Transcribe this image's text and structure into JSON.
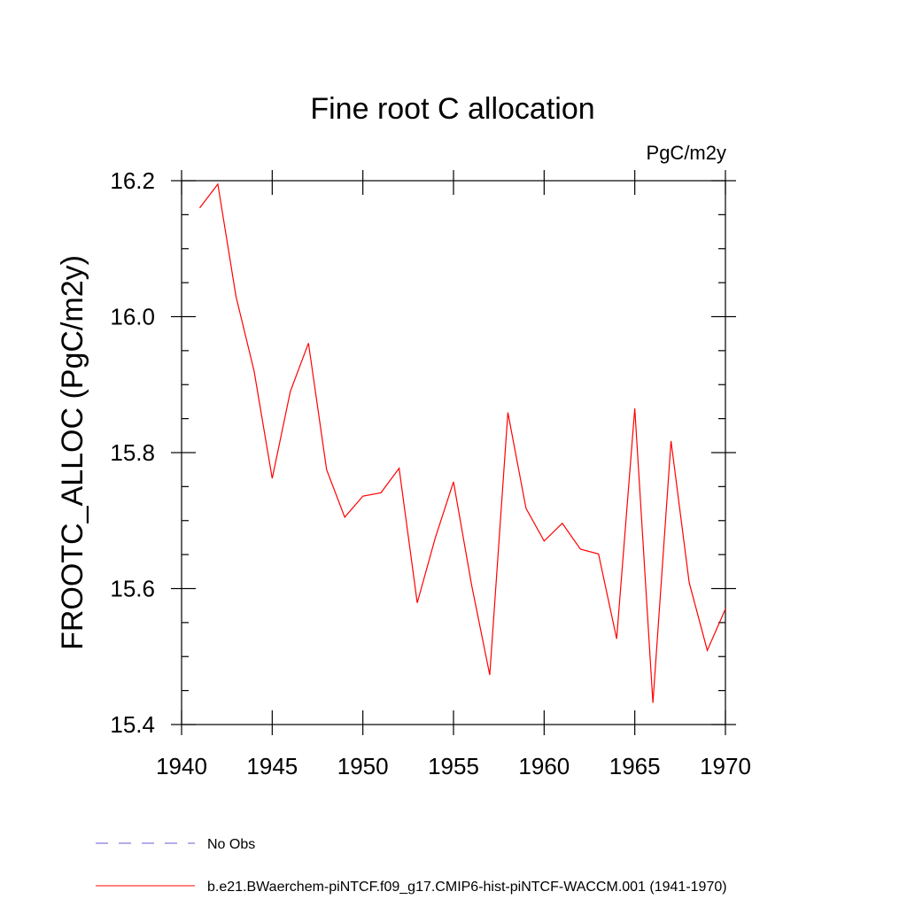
{
  "chart_data": {
    "type": "line",
    "title": "Fine root C allocation",
    "units_label": "PgC/m2y",
    "xlabel": "",
    "ylabel": "FROOTC_ALLOC  (PgC/m2y)",
    "xlim": [
      1940,
      1970
    ],
    "ylim": [
      15.4,
      16.2
    ],
    "x_ticks": [
      1940,
      1945,
      1950,
      1955,
      1960,
      1965,
      1970
    ],
    "y_ticks": [
      15.4,
      15.6,
      15.8,
      16.0,
      16.2
    ],
    "y_tick_labels": [
      "15.4",
      "15.6",
      "15.8",
      "16.0",
      "16.2"
    ],
    "x_minor_step": 1,
    "y_minor_step": 0.05,
    "grid": false,
    "legend_position": "bottom-left",
    "series": [
      {
        "name": "b.e21.BWaerchem-piNTCF.f09_g17.CMIP6-hist-piNTCF-WACCM.001 (1941-1970)",
        "color": "#ff0000",
        "style": "solid",
        "x": [
          1941,
          1942,
          1943,
          1944,
          1945,
          1946,
          1947,
          1948,
          1949,
          1950,
          1951,
          1952,
          1953,
          1954,
          1955,
          1956,
          1957,
          1958,
          1959,
          1960,
          1961,
          1962,
          1963,
          1964,
          1965,
          1966,
          1967,
          1968,
          1969,
          1970
        ],
        "values": [
          16.16,
          16.195,
          16.03,
          15.92,
          15.762,
          15.89,
          15.961,
          15.775,
          15.705,
          15.736,
          15.741,
          15.777,
          15.579,
          15.675,
          15.757,
          15.605,
          15.473,
          15.859,
          15.718,
          15.67,
          15.696,
          15.658,
          15.651,
          15.526,
          15.865,
          15.432,
          15.817,
          15.609,
          15.509,
          15.57
        ]
      }
    ],
    "legend": [
      {
        "label": "No Obs",
        "color": "#6a5acd",
        "style": "dashed"
      },
      {
        "label": "b.e21.BWaerchem-piNTCF.f09_g17.CMIP6-hist-piNTCF-WACCM.001 (1941-1970)",
        "color": "#ff0000",
        "style": "solid"
      }
    ]
  }
}
